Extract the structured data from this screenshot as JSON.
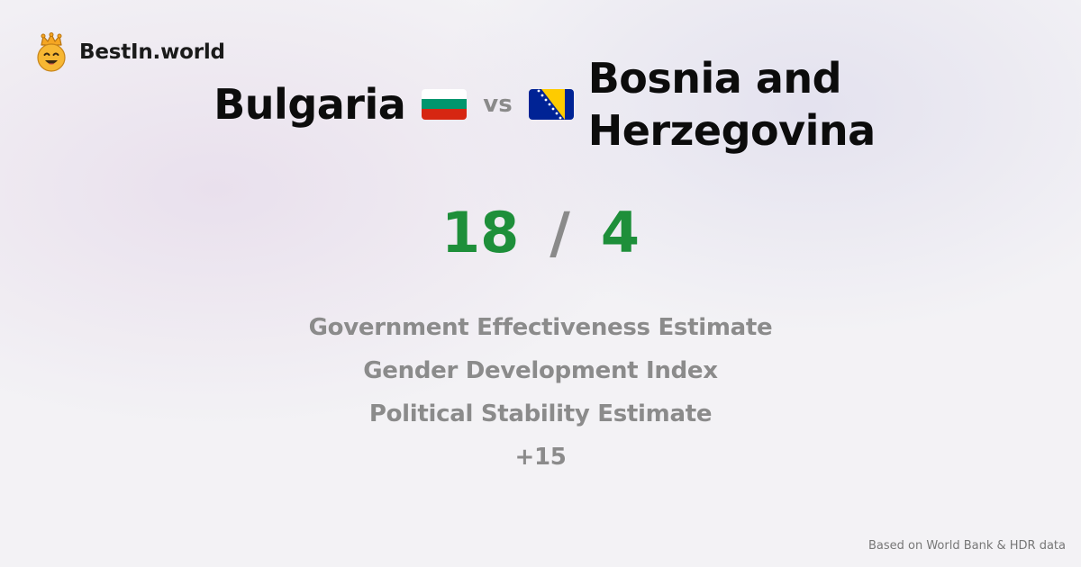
{
  "brand": {
    "name": "BestIn.world",
    "icon": "crowned-smiley-icon"
  },
  "comparison": {
    "country_a": {
      "name": "Bulgaria",
      "flag": "bulgaria-flag-icon"
    },
    "vs_label": "vs",
    "country_b": {
      "name": "Bosnia and Herzegovina",
      "flag": "bosnia-herzegovina-flag-icon"
    }
  },
  "score": {
    "a": "18",
    "separator": "/",
    "b": "4",
    "color": "#1e8f3a"
  },
  "metrics": [
    "Government Effectiveness Estimate",
    "Gender Development Index",
    "Political Stability Estimate",
    "+15"
  ],
  "footer": {
    "source": "Based on World Bank & HDR data"
  },
  "colors": {
    "win_green": "#1e8f3a",
    "muted_gray": "#8b8b8b",
    "bulgaria_flag": [
      "#ffffff",
      "#00966e",
      "#d62612"
    ],
    "bosnia_flag": [
      "#002395",
      "#fecb00",
      "#ffffff"
    ]
  }
}
